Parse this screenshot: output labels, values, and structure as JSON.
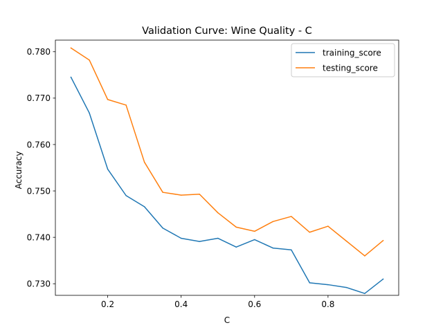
{
  "chart_data": {
    "type": "line",
    "title": "Validation Curve: Wine Quality - C",
    "xlabel": "C",
    "ylabel": "Accuracy",
    "xlim": [
      0.0575,
      0.9925
    ],
    "ylim": [
      0.7275,
      0.7825
    ],
    "x_ticks": [
      0.2,
      0.4,
      0.6,
      0.8
    ],
    "x_tick_labels": [
      "0.2",
      "0.4",
      "0.6",
      "0.8"
    ],
    "y_ticks": [
      0.73,
      0.74,
      0.75,
      0.76,
      0.77,
      0.78
    ],
    "y_tick_labels": [
      "0.730",
      "0.740",
      "0.750",
      "0.760",
      "0.770",
      "0.780"
    ],
    "grid": false,
    "legend_position": "upper right",
    "x": [
      0.1,
      0.15,
      0.2,
      0.25,
      0.3,
      0.35,
      0.4,
      0.45,
      0.5,
      0.55,
      0.6,
      0.65,
      0.7,
      0.75,
      0.8,
      0.85,
      0.9,
      0.95
    ],
    "series": [
      {
        "name": "training_score",
        "color": "#1f77b4",
        "values": [
          0.7745,
          0.7668,
          0.7547,
          0.749,
          0.7466,
          0.742,
          0.7398,
          0.7391,
          0.7398,
          0.7379,
          0.7395,
          0.7377,
          0.7373,
          0.7302,
          0.7298,
          0.7292,
          0.7279,
          0.731
        ]
      },
      {
        "name": "testing_score",
        "color": "#ff7f0e",
        "values": [
          0.7808,
          0.7782,
          0.7697,
          0.7685,
          0.7562,
          0.7497,
          0.7491,
          0.7493,
          0.7453,
          0.7422,
          0.7413,
          0.7434,
          0.7445,
          0.7411,
          0.7424,
          0.7392,
          0.736,
          0.7393
        ]
      }
    ]
  }
}
